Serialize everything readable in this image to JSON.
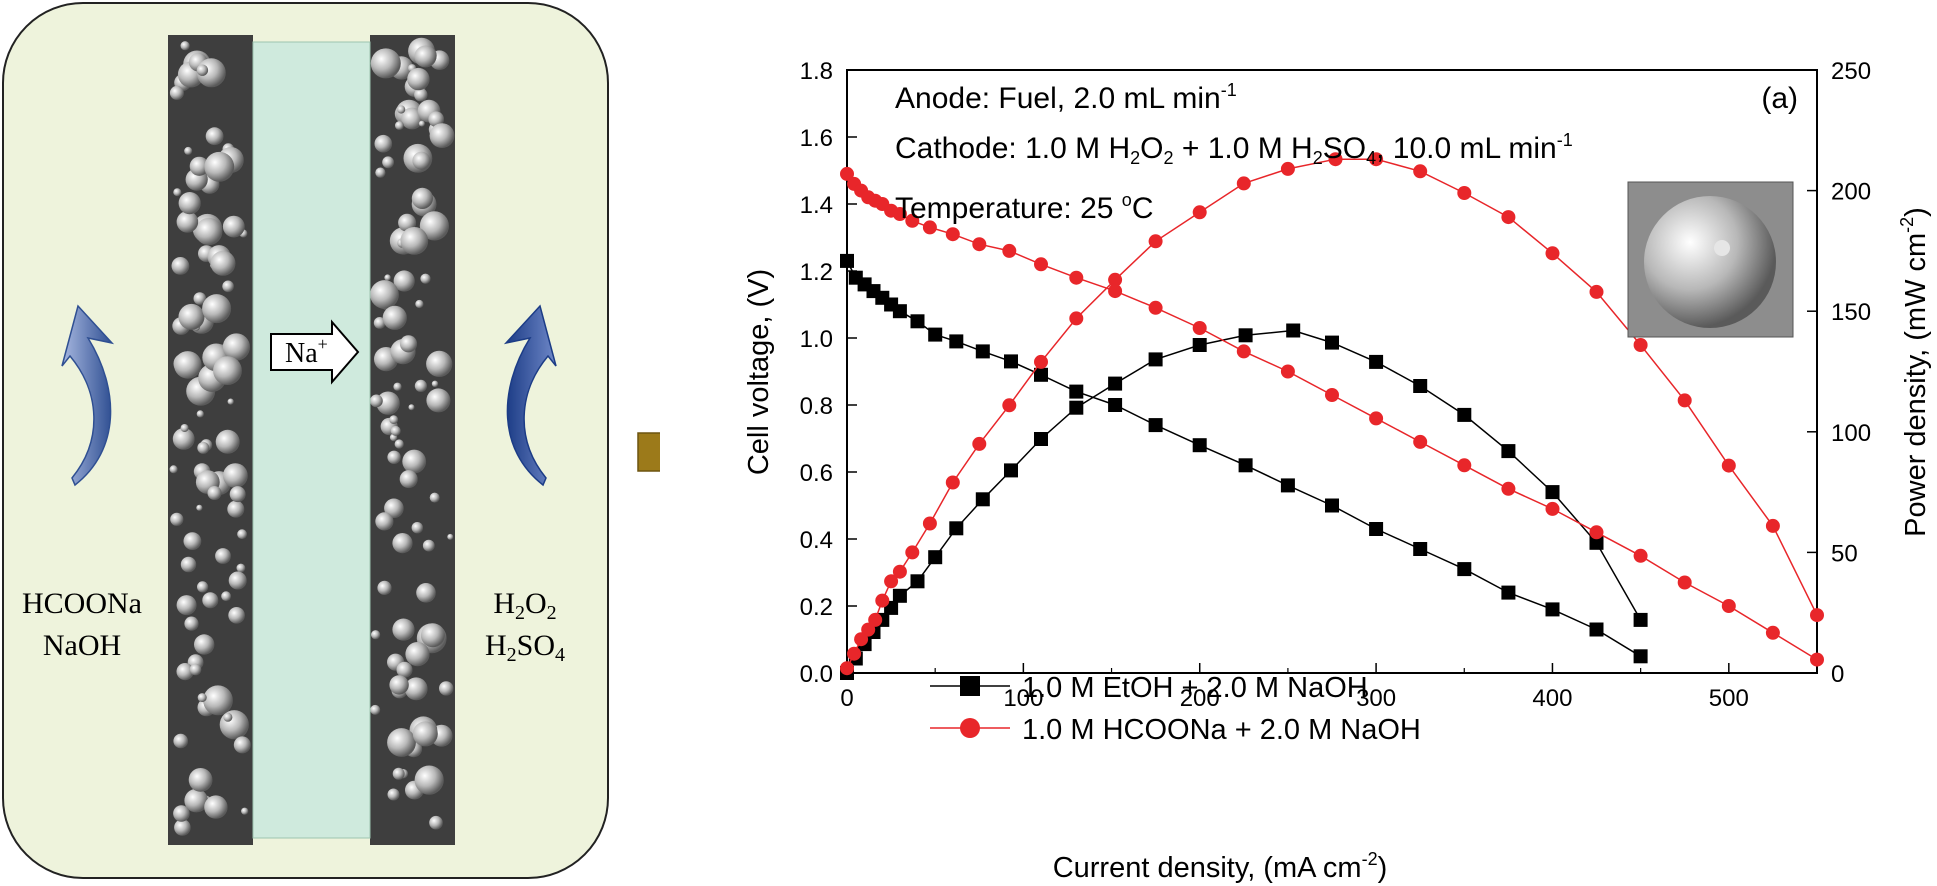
{
  "schematic": {
    "ion_label": "Na",
    "ion_charge": "+",
    "anode_species": [
      "HCOONa",
      "NaOH"
    ],
    "cathode_species": [
      {
        "parts": [
          [
            "H",
            ""
          ],
          [
            "2",
            "sub"
          ],
          [
            "O",
            ""
          ],
          [
            "2",
            "sub"
          ]
        ]
      },
      {
        "parts": [
          [
            "H",
            ""
          ],
          [
            "2",
            "sub"
          ],
          [
            "SO",
            ""
          ],
          [
            "4",
            "sub"
          ]
        ]
      }
    ],
    "membrane_color": "#cfeadd",
    "panel_color": "#eef3dc",
    "arrow_color": "#3f5fa0",
    "flow_arrow_color": "#9c7a1a"
  },
  "annotations": {
    "anode": {
      "parts": [
        [
          "Anode: Fuel, 2.0 mL min",
          ""
        ],
        [
          "-1",
          "sup"
        ]
      ]
    },
    "cathode": {
      "parts": [
        [
          "Cathode: 1.0 M H",
          ""
        ],
        [
          "2",
          "sub"
        ],
        [
          "O",
          ""
        ],
        [
          "2",
          "sub"
        ],
        [
          " + 1.0 M H",
          ""
        ],
        [
          "2",
          "sub"
        ],
        [
          "SO",
          ""
        ],
        [
          "4",
          "sub"
        ],
        [
          ", 10.0 mL min",
          ""
        ],
        [
          "-1",
          "sup"
        ]
      ]
    },
    "temperature": {
      "parts": [
        [
          "Temperature: 25 ",
          ""
        ],
        [
          "o",
          "sup"
        ],
        [
          "C",
          ""
        ]
      ]
    },
    "panel_label": "(a)"
  },
  "chart_data": {
    "type": "line",
    "xlabel": {
      "parts": [
        [
          "Current density, (mA cm",
          ""
        ],
        [
          "-2",
          "sup"
        ],
        [
          ")",
          ""
        ]
      ]
    },
    "ylabel": "Cell voltage, (V)",
    "y2label": {
      "parts": [
        [
          "Power density, (mW cm",
          ""
        ],
        [
          "-2",
          "sup"
        ],
        [
          ")",
          ""
        ]
      ]
    },
    "xlim": [
      0,
      550
    ],
    "ylim": [
      0,
      1.8
    ],
    "y2lim": [
      0,
      250
    ],
    "xticks": [
      "0",
      "100",
      "200",
      "300",
      "400",
      "500"
    ],
    "yticks": [
      "0.0",
      "0.2",
      "0.4",
      "0.6",
      "0.8",
      "1.0",
      "1.2",
      "1.4",
      "1.6",
      "1.8"
    ],
    "y2ticks": [
      "0",
      "50",
      "100",
      "150",
      "200",
      "250"
    ],
    "legend_position": "lower-left",
    "series": [
      {
        "name": "1.0 M EtOH + 2.0 M NaOH",
        "color": "#000000",
        "marker": "square",
        "voltage": {
          "x": [
            0,
            5,
            10,
            15,
            20,
            25,
            30,
            40,
            50,
            62,
            77,
            93,
            110,
            130,
            152,
            175,
            200,
            226,
            250,
            275,
            300,
            325,
            350,
            375,
            400,
            425,
            450
          ],
          "y": [
            1.23,
            1.18,
            1.16,
            1.14,
            1.12,
            1.1,
            1.08,
            1.05,
            1.01,
            0.99,
            0.96,
            0.93,
            0.89,
            0.84,
            0.8,
            0.74,
            0.68,
            0.62,
            0.56,
            0.5,
            0.43,
            0.37,
            0.31,
            0.24,
            0.19,
            0.13,
            0.05
          ]
        },
        "power": {
          "x": [
            0,
            5,
            10,
            15,
            20,
            25,
            30,
            40,
            50,
            62,
            77,
            93,
            110,
            130,
            152,
            175,
            200,
            226,
            253,
            275,
            300,
            325,
            350,
            375,
            400,
            425,
            450
          ],
          "y": [
            0,
            6,
            12,
            17,
            22,
            27,
            32,
            38,
            48,
            60,
            72,
            84,
            97,
            110,
            120,
            130,
            136,
            140,
            142,
            137,
            129,
            119,
            107,
            92,
            75,
            54,
            22
          ]
        }
      },
      {
        "name": "1.0 M HCOONa + 2.0 M NaOH",
        "color": "#e8262a",
        "marker": "circle",
        "voltage": {
          "x": [
            0,
            4,
            8,
            12,
            16,
            20,
            25,
            30,
            37,
            47,
            60,
            75,
            92,
            110,
            130,
            152,
            175,
            200,
            225,
            250,
            275,
            300,
            325,
            350,
            375,
            400,
            425,
            450,
            475,
            500,
            525,
            550
          ],
          "y": [
            1.49,
            1.46,
            1.44,
            1.42,
            1.41,
            1.4,
            1.38,
            1.37,
            1.35,
            1.33,
            1.31,
            1.28,
            1.26,
            1.22,
            1.18,
            1.14,
            1.09,
            1.03,
            0.96,
            0.9,
            0.83,
            0.76,
            0.69,
            0.62,
            0.55,
            0.49,
            0.42,
            0.35,
            0.27,
            0.2,
            0.12,
            0.04
          ]
        },
        "power": {
          "x": [
            0,
            4,
            8,
            12,
            16,
            20,
            25,
            30,
            37,
            47,
            60,
            75,
            92,
            110,
            130,
            152,
            175,
            200,
            225,
            250,
            277,
            300,
            325,
            350,
            375,
            400,
            425,
            450,
            475,
            500,
            525,
            550
          ],
          "y": [
            2,
            8,
            14,
            18,
            22,
            30,
            38,
            42,
            50,
            62,
            79,
            95,
            111,
            129,
            147,
            163,
            179,
            191,
            203,
            209,
            213,
            213,
            208,
            199,
            189,
            174,
            158,
            136,
            113,
            86,
            61,
            24
          ]
        }
      }
    ]
  }
}
